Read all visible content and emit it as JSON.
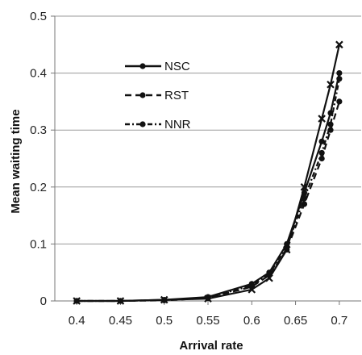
{
  "chart_data": {
    "type": "line",
    "title": "",
    "xlabel": "Arrival rate",
    "ylabel": "Mean waiting time",
    "x": [
      0.4,
      0.45,
      0.5,
      0.55,
      0.6,
      0.62,
      0.64,
      0.66,
      0.68,
      0.69,
      0.7
    ],
    "xlim": [
      0.375,
      0.725
    ],
    "ylim": [
      0,
      0.5
    ],
    "x_ticks": [
      0.4,
      0.45,
      0.5,
      0.55,
      0.6,
      0.65,
      0.7
    ],
    "y_ticks": [
      0,
      0.1,
      0.2,
      0.3,
      0.4,
      0.5
    ],
    "x_tick_labels": [
      "0.4",
      "0.45",
      "0.5",
      "0.55",
      "0.6",
      "0.65",
      "0.7"
    ],
    "y_tick_labels": [
      "0",
      "0.1",
      "0.2",
      "0.3",
      "0.4",
      "0.5"
    ],
    "grid": "horizontal",
    "legend_position": "upper-left",
    "series": [
      {
        "name": "NSC",
        "style": "solid",
        "marker": "circle",
        "color": "#111111",
        "values": [
          0.0,
          0.0,
          0.002,
          0.007,
          0.03,
          0.05,
          0.1,
          0.19,
          0.28,
          0.33,
          0.4
        ]
      },
      {
        "name": "RST",
        "style": "dashed",
        "marker": "circle",
        "color": "#111111",
        "values": [
          0.0,
          0.0,
          0.001,
          0.005,
          0.025,
          0.045,
          0.09,
          0.17,
          0.25,
          0.3,
          0.35
        ]
      },
      {
        "name": "NNR",
        "style": "dash-dot",
        "marker": "circle",
        "color": "#111111",
        "values": [
          0.0,
          0.0,
          0.0015,
          0.006,
          0.027,
          0.047,
          0.095,
          0.18,
          0.26,
          0.31,
          0.39
        ]
      },
      {
        "name": "",
        "style": "solid",
        "marker": "x",
        "color": "#111111",
        "values": [
          0.0,
          0.0,
          0.002,
          0.004,
          0.02,
          0.04,
          0.09,
          0.2,
          0.32,
          0.38,
          0.45
        ]
      }
    ]
  }
}
